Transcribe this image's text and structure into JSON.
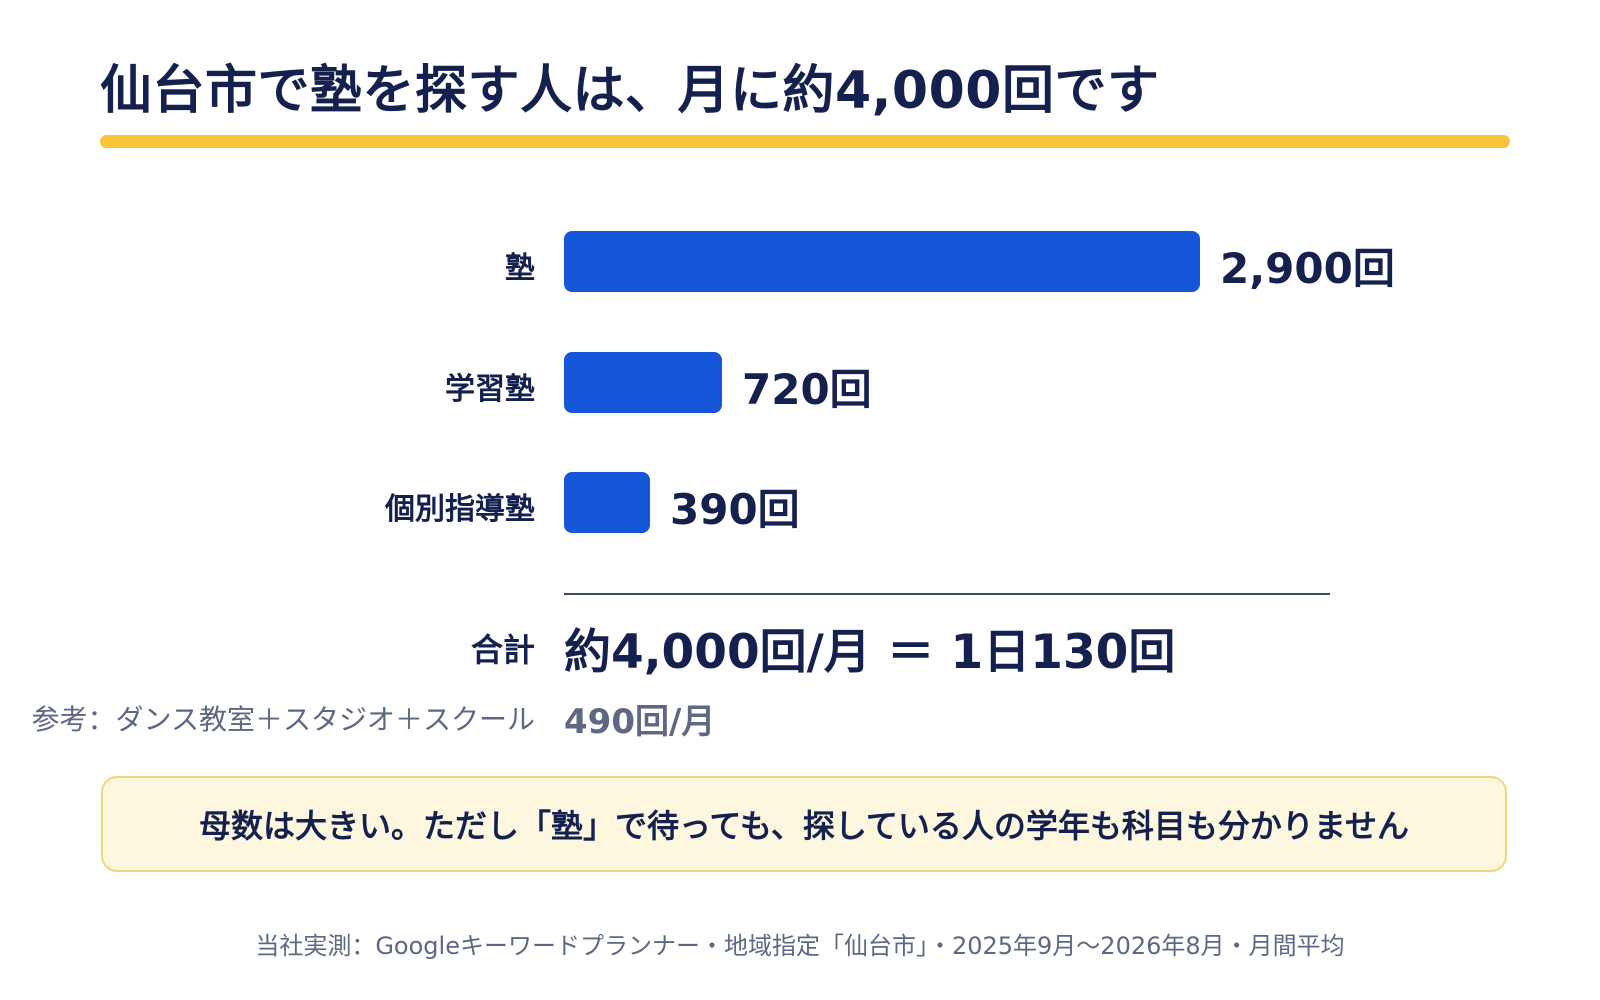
{
  "title": "仙台市で塾を探す人は、月に約4,000回です",
  "chart_data": {
    "type": "bar",
    "orientation": "horizontal",
    "categories": [
      "塾",
      "学習塾",
      "個別指導塾"
    ],
    "values": [
      2900,
      720,
      390
    ],
    "value_labels": [
      "2,900回",
      "720回",
      "390回"
    ],
    "unit": "回",
    "total_label": "合計",
    "total_value": "約4,000回/月 ＝ 1日130回",
    "reference_label": "参考：ダンス教室＋スタジオ＋スクール",
    "reference_value": "490回/月"
  },
  "callout": "母数は大きい。ただし「塾」で待っても、探している人の学年も科目も分かりません",
  "footnote": "当社実測：Googleキーワードプランナー・地域指定「仙台市」・2025年9月〜2026年8月・月間平均",
  "colors": {
    "bar": "#1557d8",
    "text_dark": "#14214f",
    "accent_rule": "#f8c53a",
    "callout_bg": "#fdf7e0",
    "callout_border": "#f1d47e",
    "muted": "#5e6883"
  }
}
